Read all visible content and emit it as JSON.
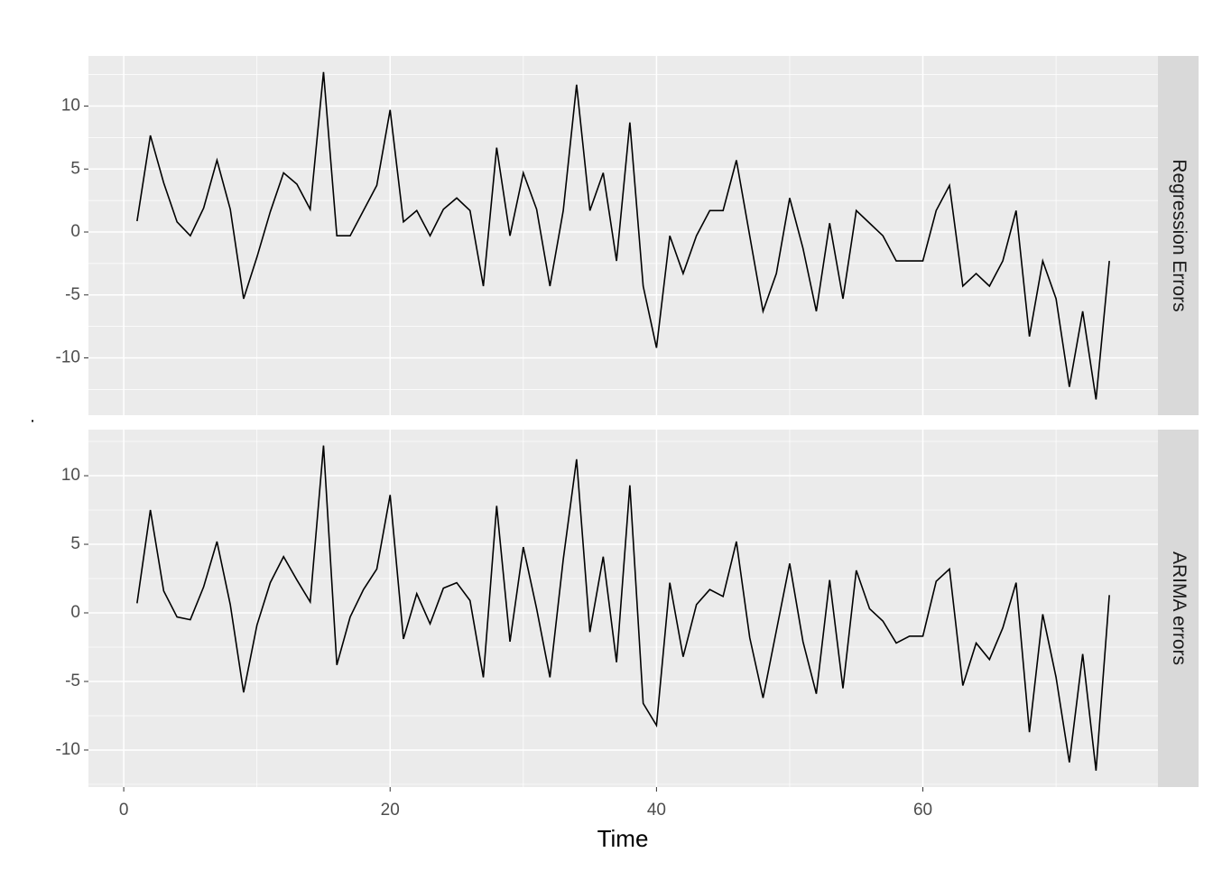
{
  "chart_data": {
    "type": "line",
    "xlabel": "Time",
    "ylabel": ".",
    "x": [
      1,
      2,
      3,
      4,
      5,
      6,
      7,
      8,
      9,
      10,
      11,
      12,
      13,
      14,
      15,
      16,
      17,
      18,
      19,
      20,
      21,
      22,
      23,
      24,
      25,
      26,
      27,
      28,
      29,
      30,
      31,
      32,
      33,
      34,
      35,
      36,
      37,
      38,
      39,
      40,
      41,
      42,
      43,
      44,
      45,
      46,
      47,
      48,
      49,
      50,
      51,
      52,
      53,
      54,
      55,
      56,
      57,
      58,
      59,
      60,
      61,
      62,
      63,
      64,
      65,
      66,
      67,
      68,
      69,
      70,
      71,
      72,
      73,
      74
    ],
    "xlim": [
      -2.65,
      77.65
    ],
    "xticks": [
      0,
      20,
      40,
      60
    ],
    "grid": true,
    "series": [
      {
        "name": "Regression Errors",
        "color": "#000000",
        "ylim": [
          -14.55,
          13.98
        ],
        "yticks": [
          -10,
          -5,
          0,
          5,
          10
        ],
        "values": [
          0.86,
          7.67,
          3.9,
          0.8,
          -0.3,
          1.9,
          5.7,
          1.8,
          -5.3,
          -2.0,
          1.6,
          4.7,
          3.8,
          1.8,
          12.7,
          -0.3,
          -0.3,
          1.7,
          3.7,
          9.7,
          0.8,
          1.7,
          -0.3,
          1.8,
          2.7,
          1.7,
          -4.3,
          6.7,
          -0.3,
          4.7,
          1.8,
          -4.3,
          1.7,
          11.7,
          1.7,
          4.7,
          -2.3,
          8.7,
          -4.3,
          -9.2,
          -0.3,
          -3.3,
          -0.3,
          1.7,
          1.7,
          5.7,
          -0.3,
          -6.3,
          -3.3,
          2.7,
          -1.3,
          -6.3,
          0.7,
          -5.3,
          1.7,
          0.7,
          -0.3,
          -2.3,
          -2.3,
          -2.3,
          1.7,
          3.7,
          -4.3,
          -3.3,
          -4.3,
          -2.3,
          1.7,
          -8.3,
          -2.3,
          -5.3,
          -12.3,
          -6.3,
          -13.3,
          -2.3
        ]
      },
      {
        "name": "ARIMA errors",
        "color": "#000000",
        "ylim": [
          -12.7,
          13.36
        ],
        "yticks": [
          -10,
          -5,
          0,
          5,
          10
        ],
        "values": [
          0.7,
          7.5,
          1.6,
          -0.3,
          -0.5,
          1.9,
          5.2,
          0.6,
          -5.8,
          -0.9,
          2.2,
          4.1,
          2.4,
          0.8,
          12.2,
          -3.8,
          -0.3,
          1.7,
          3.2,
          8.6,
          -1.9,
          1.4,
          -0.8,
          1.8,
          2.2,
          0.9,
          -4.7,
          7.8,
          -2.1,
          4.8,
          0.3,
          -4.7,
          3.9,
          11.2,
          -1.4,
          4.1,
          -3.6,
          9.3,
          -6.6,
          -8.2,
          2.2,
          -3.2,
          0.6,
          1.7,
          1.2,
          5.2,
          -1.8,
          -6.2,
          -1.3,
          3.6,
          -2.1,
          -5.9,
          2.4,
          -5.5,
          3.1,
          0.3,
          -0.6,
          -2.2,
          -1.7,
          -1.7,
          2.3,
          3.2,
          -5.3,
          -2.2,
          -3.4,
          -1.1,
          2.2,
          -8.7,
          -0.1,
          -4.7,
          -10.9,
          -3.0,
          -11.5,
          1.3
        ]
      }
    ]
  }
}
